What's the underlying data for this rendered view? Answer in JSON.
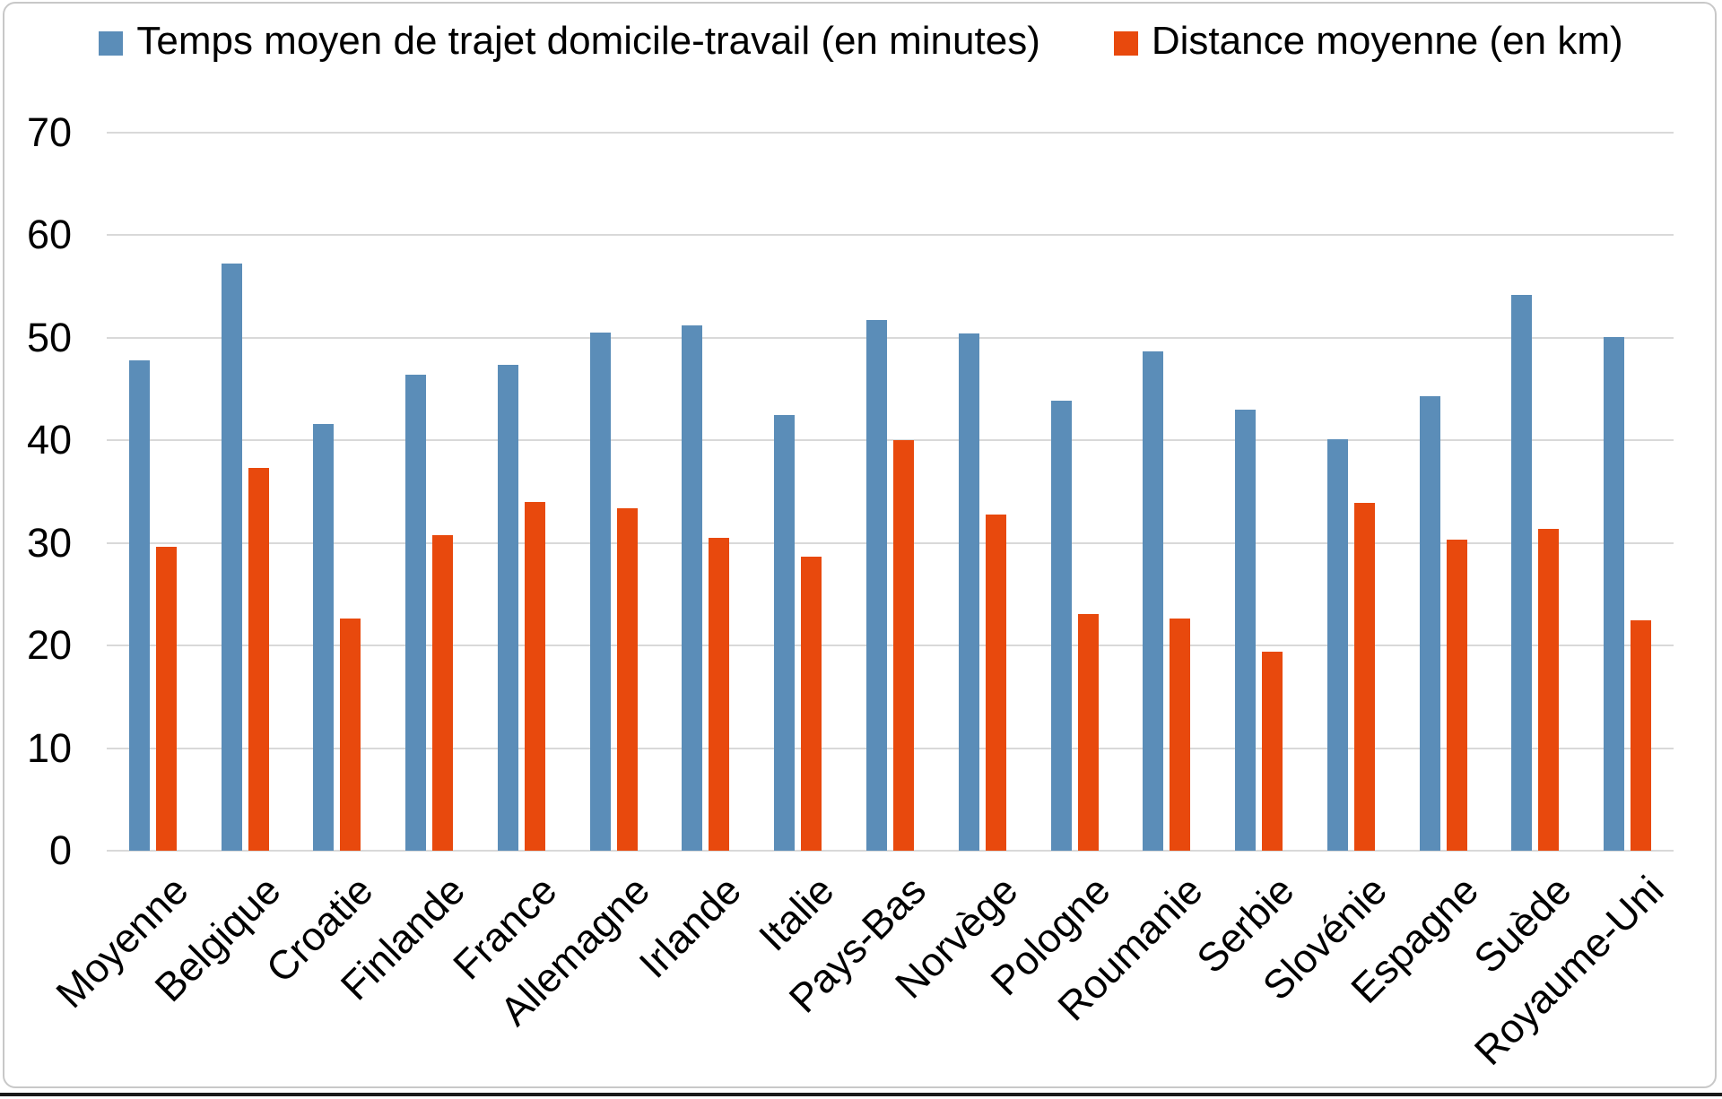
{
  "chart_data": {
    "type": "bar",
    "title": "",
    "categories": [
      "Moyenne",
      "Belgique",
      "Croatie",
      "Finlande",
      "France",
      "Allemagne",
      "Irlande",
      "Italie",
      "Pays-Bas",
      "Norvège",
      "Pologne",
      "Roumanie",
      "Serbie",
      "Slovénie",
      "Espagne",
      "Suède",
      "Royaume-Uni"
    ],
    "series": [
      {
        "name": "Temps moyen de trajet domicile-travail (en minutes)",
        "color": "#5b8db8",
        "values": [
          47.8,
          57.2,
          41.6,
          46.4,
          47.4,
          50.5,
          51.2,
          42.5,
          51.7,
          50.4,
          43.9,
          48.7,
          43.0,
          40.1,
          44.3,
          54.2,
          50.1
        ]
      },
      {
        "name": "Distance moyenne (en km)",
        "color": "#e8490d",
        "values": [
          29.6,
          37.3,
          22.6,
          30.8,
          34.0,
          33.4,
          30.5,
          28.7,
          40.0,
          32.8,
          23.1,
          22.6,
          19.4,
          33.9,
          30.3,
          31.4,
          22.5
        ]
      }
    ],
    "ylim": [
      0,
      70
    ],
    "yticks": [
      0,
      10,
      20,
      30,
      40,
      50,
      60,
      70
    ],
    "grid": "horizontal",
    "legend_position": "top",
    "gridline_color": "#d9d9d9",
    "xlabel": "",
    "ylabel": ""
  }
}
